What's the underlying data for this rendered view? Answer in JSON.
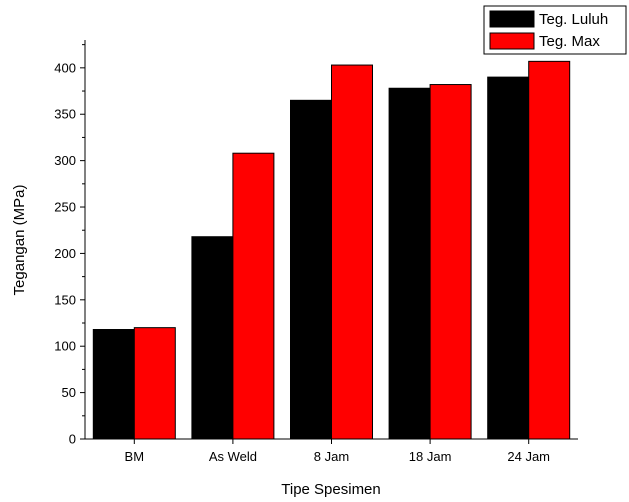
{
  "chart_data": {
    "type": "bar",
    "categories": [
      "BM",
      "As Weld",
      "8 Jam",
      "18 Jam",
      "24 Jam"
    ],
    "series": [
      {
        "name": "Teg. Luluh",
        "color": "#000000",
        "values": [
          118,
          218,
          365,
          378,
          390
        ]
      },
      {
        "name": "Teg. Max",
        "color": "#ff0000",
        "values": [
          120,
          308,
          403,
          382,
          407
        ]
      }
    ],
    "title": "",
    "xlabel": "Tipe Spesimen",
    "ylabel": "Tegangan (MPa)",
    "ylim": [
      0,
      430
    ],
    "yticks": [
      0,
      50,
      100,
      150,
      200,
      250,
      300,
      350,
      400
    ],
    "grid": false,
    "legend_position": "top-right"
  }
}
